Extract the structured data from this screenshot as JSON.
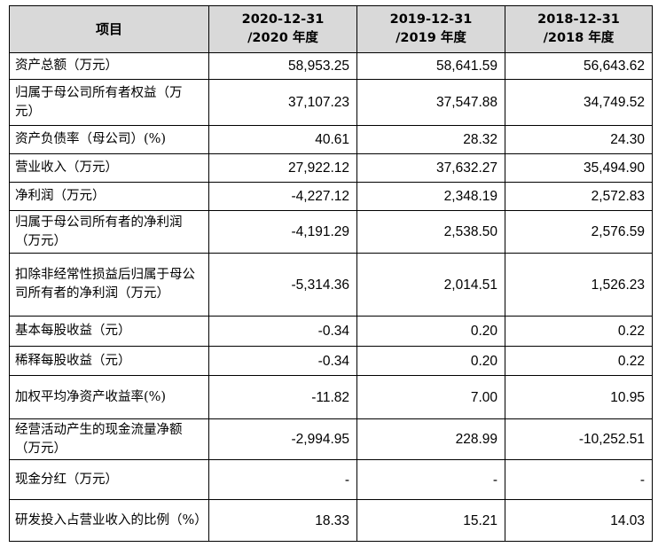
{
  "table": {
    "headers": [
      {
        "line1": "项目",
        "line2": ""
      },
      {
        "line1": "2020-12-31",
        "line2": "/2020 年度"
      },
      {
        "line1": "2019-12-31",
        "line2": "/2019 年度"
      },
      {
        "line1": "2018-12-31",
        "line2": "/2018 年度"
      }
    ],
    "rows": [
      {
        "label": "资产总额（万元）",
        "v2020": "58,953.25",
        "v2019": "58,641.59",
        "v2018": "56,643.62"
      },
      {
        "label": "归属于母公司所有者权益（万元）",
        "v2020": "37,107.23",
        "v2019": "37,547.88",
        "v2018": "34,749.52"
      },
      {
        "label": "资产负债率（母公司）(%)",
        "v2020": "40.61",
        "v2019": "28.32",
        "v2018": "24.30"
      },
      {
        "label": "营业收入（万元）",
        "v2020": "27,922.12",
        "v2019": "37,632.27",
        "v2018": "35,494.90"
      },
      {
        "label": "净利润（万元）",
        "v2020": "-4,227.12",
        "v2019": "2,348.19",
        "v2018": "2,572.83"
      },
      {
        "label": "归属于母公司所有者的净利润（万元）",
        "v2020": "-4,191.29",
        "v2019": "2,538.50",
        "v2018": "2,576.59"
      },
      {
        "label": "扣除非经常性损益后归属于母公司所有者的净利润（万元）",
        "v2020": "-5,314.36",
        "v2019": "2,014.51",
        "v2018": "1,526.23"
      },
      {
        "label": "基本每股收益（元）",
        "v2020": "-0.34",
        "v2019": "0.20",
        "v2018": "0.22"
      },
      {
        "label": "稀释每股收益（元）",
        "v2020": "-0.34",
        "v2019": "0.20",
        "v2018": "0.22"
      },
      {
        "label": "加权平均净资产收益率(%)",
        "v2020": "-11.82",
        "v2019": "7.00",
        "v2018": "10.95"
      },
      {
        "label": "经营活动产生的现金流量净额（万元）",
        "v2020": "-2,994.95",
        "v2019": "228.99",
        "v2018": "-10,252.51"
      },
      {
        "label": "现金分红（万元）",
        "v2020": "-",
        "v2019": "-",
        "v2018": "-"
      },
      {
        "label": "研发投入占营业收入的比例（%）",
        "v2020": "18.33",
        "v2019": "15.21",
        "v2018": "14.03"
      }
    ]
  },
  "colors": {
    "header_bg": "#d9d9d9",
    "border": "#000000"
  }
}
